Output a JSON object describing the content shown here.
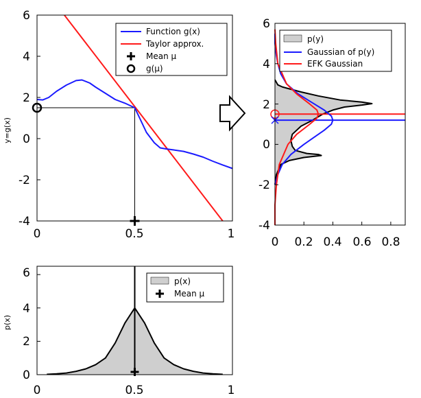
{
  "colors": {
    "function": "#1a1aff",
    "taylor": "#ff1a1a",
    "marker": "#000000",
    "fill": "#cfcfcf",
    "gauss_py": "#1a1aff",
    "efk": "#ff1a1a"
  },
  "chart_data": [
    {
      "id": "transform",
      "type": "line",
      "ylabel": "y=g(x)",
      "xlim": [
        0,
        1
      ],
      "ylim": [
        -4,
        6
      ],
      "xticks": [
        "0",
        "0.5",
        "1"
      ],
      "yticks": [
        "-4",
        "-2",
        "0",
        "2",
        "4",
        "6"
      ],
      "series": [
        {
          "name": "Function g(x)",
          "color": "#1a1aff",
          "x": [
            0,
            0.03,
            0.06,
            0.1,
            0.15,
            0.2,
            0.23,
            0.27,
            0.3,
            0.35,
            0.4,
            0.45,
            0.5,
            0.53,
            0.56,
            0.6,
            0.63,
            0.66,
            0.7,
            0.75,
            0.8,
            0.85,
            0.9,
            0.95,
            1.0
          ],
          "y": [
            1.9,
            1.88,
            2.0,
            2.3,
            2.6,
            2.82,
            2.85,
            2.7,
            2.5,
            2.2,
            1.9,
            1.72,
            1.5,
            0.9,
            0.3,
            -0.2,
            -0.45,
            -0.5,
            -0.55,
            -0.62,
            -0.75,
            -0.9,
            -1.1,
            -1.28,
            -1.45
          ]
        },
        {
          "name": "Taylor approx.",
          "color": "#ff1a1a",
          "x": [
            0.14,
            0.95
          ],
          "y": [
            6.0,
            -4.0
          ]
        }
      ],
      "points": [
        {
          "name": "Mean μ",
          "x": 0.5,
          "y": -4,
          "marker": "plus"
        },
        {
          "name": "g(μ)",
          "x": 0,
          "y": 1.5,
          "marker": "circle"
        }
      ],
      "guides": {
        "mean_x": 0.5,
        "g_mu": 1.5
      },
      "legend": {
        "position": "top-right",
        "entries": [
          "Function g(x)",
          "Taylor approx.",
          "Mean μ",
          "g(μ)"
        ]
      }
    },
    {
      "id": "output",
      "type": "area",
      "xlim": [
        0,
        0.9
      ],
      "ylim": [
        -4,
        6
      ],
      "xticks": [
        "0",
        "0.2",
        "0.4",
        "0.6",
        "0.8"
      ],
      "yticks": [
        "-4",
        "-2",
        "0",
        "2",
        "4",
        "6"
      ],
      "series": [
        {
          "name": "p(y)",
          "color": "#000000",
          "y": [
            -2.0,
            -1.5,
            -1.0,
            -0.8,
            -0.65,
            -0.55,
            -0.5,
            -0.45,
            -0.3,
            -0.1,
            0.2,
            0.5,
            0.9,
            1.2,
            1.5,
            1.7,
            1.85,
            1.95,
            2.02,
            2.1,
            2.2,
            2.4,
            2.6,
            2.75,
            2.85,
            2.95,
            3.2
          ],
          "x": [
            0.0,
            0.01,
            0.04,
            0.1,
            0.2,
            0.32,
            0.3,
            0.22,
            0.14,
            0.12,
            0.11,
            0.12,
            0.18,
            0.26,
            0.33,
            0.4,
            0.48,
            0.6,
            0.67,
            0.6,
            0.45,
            0.3,
            0.18,
            0.1,
            0.05,
            0.02,
            0.0
          ]
        },
        {
          "name": "Gaussian of p(y)",
          "color": "#1a1aff",
          "y": [
            -2.0,
            -1.5,
            -1.0,
            -0.5,
            0.0,
            0.3,
            0.7,
            1.0,
            1.2,
            1.4,
            1.7,
            2.1,
            2.5,
            3.0,
            3.5,
            4.0,
            4.4,
            5.0,
            5.5
          ],
          "x": [
            0.0,
            0.02,
            0.05,
            0.11,
            0.2,
            0.26,
            0.34,
            0.39,
            0.4,
            0.39,
            0.34,
            0.25,
            0.16,
            0.08,
            0.04,
            0.02,
            0.01,
            0.0,
            0.0
          ]
        },
        {
          "name": "EFK Gaussian",
          "color": "#ff1a1a",
          "y": [
            -4.0,
            -3.0,
            -2.0,
            -1.0,
            0.0,
            0.5,
            1.0,
            1.3,
            1.5,
            1.7,
            2.0,
            2.5,
            3.0,
            4.0,
            5.0,
            5.7
          ],
          "x": [
            0.0,
            0.0,
            0.01,
            0.03,
            0.09,
            0.15,
            0.24,
            0.29,
            0.3,
            0.29,
            0.24,
            0.15,
            0.08,
            0.02,
            0.005,
            0.0
          ]
        }
      ],
      "hlines": [
        {
          "color": "#ff1a1a",
          "y": 1.5
        },
        {
          "color": "#1a1aff",
          "y": 1.2
        }
      ],
      "points": [
        {
          "x": 0.0,
          "y": 1.5,
          "marker": "circle",
          "color": "#ff1a1a"
        },
        {
          "x": 0.0,
          "y": 1.2,
          "marker": "cross",
          "color": "#1a1aff"
        }
      ],
      "legend": {
        "position": "top-right",
        "entries": [
          "p(y)",
          "Gaussian of p(y)",
          "EFK Gaussian"
        ]
      }
    },
    {
      "id": "input",
      "type": "area",
      "ylabel": "p(x)",
      "xlim": [
        0,
        1
      ],
      "ylim": [
        0,
        6.5
      ],
      "xticks": [
        "0",
        "0.5",
        "1"
      ],
      "yticks": [
        "0",
        "2",
        "4",
        "6"
      ],
      "series": [
        {
          "name": "p(x)",
          "color": "#000000",
          "x": [
            0.05,
            0.1,
            0.15,
            0.2,
            0.25,
            0.3,
            0.35,
            0.4,
            0.45,
            0.5,
            0.55,
            0.6,
            0.65,
            0.7,
            0.75,
            0.8,
            0.85,
            0.9,
            0.95
          ],
          "y": [
            0.02,
            0.05,
            0.1,
            0.2,
            0.35,
            0.6,
            1.0,
            1.9,
            3.1,
            4.0,
            3.1,
            1.9,
            1.0,
            0.6,
            0.35,
            0.2,
            0.1,
            0.05,
            0.02
          ]
        }
      ],
      "points": [
        {
          "name": "Mean μ",
          "x": 0.5,
          "y": 0,
          "marker": "plus"
        }
      ],
      "vline_x": 0.5,
      "legend": {
        "position": "top-right",
        "entries": [
          "p(x)",
          "Mean μ"
        ]
      }
    }
  ]
}
